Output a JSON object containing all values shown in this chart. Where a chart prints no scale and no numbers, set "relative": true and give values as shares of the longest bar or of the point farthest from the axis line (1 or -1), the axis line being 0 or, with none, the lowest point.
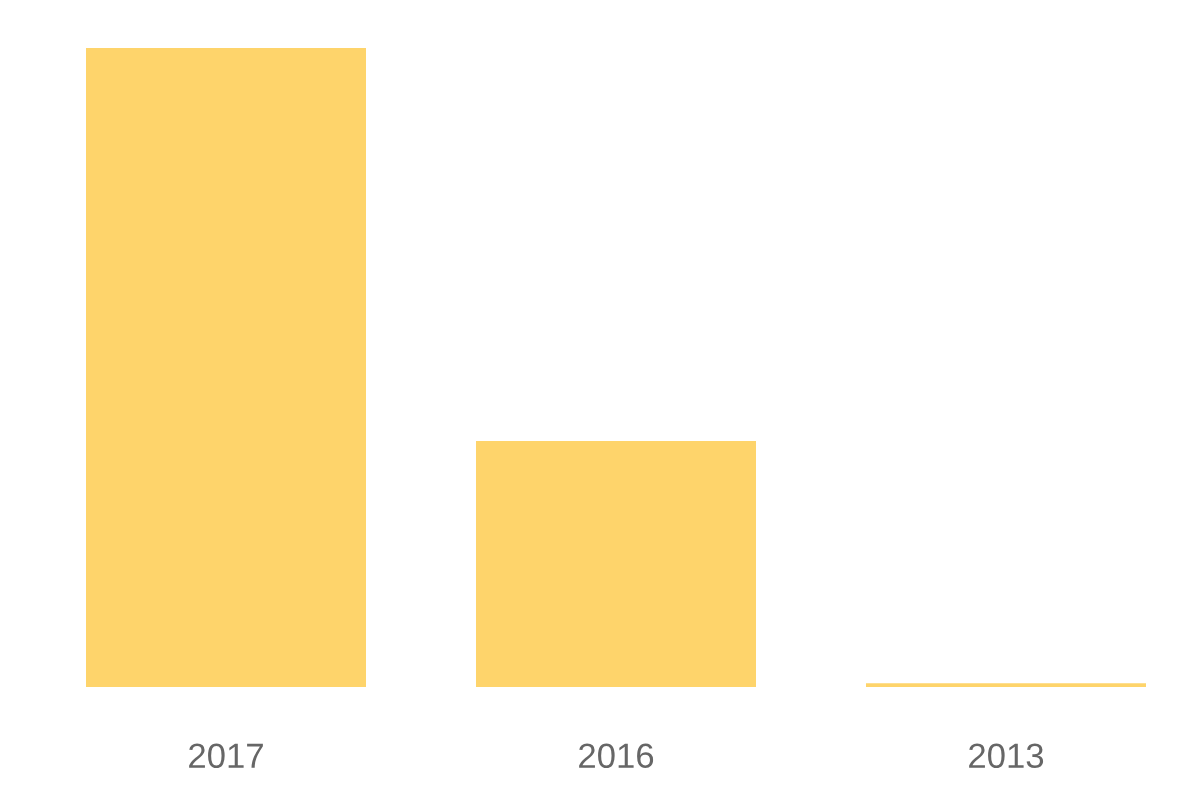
{
  "chart_data": {
    "type": "bar",
    "relative": true,
    "categories": [
      "2017",
      "2016",
      "2013"
    ],
    "values": [
      1,
      0.385,
      0.006
    ],
    "color": "#fed46b",
    "grid": false,
    "legend": false
  }
}
